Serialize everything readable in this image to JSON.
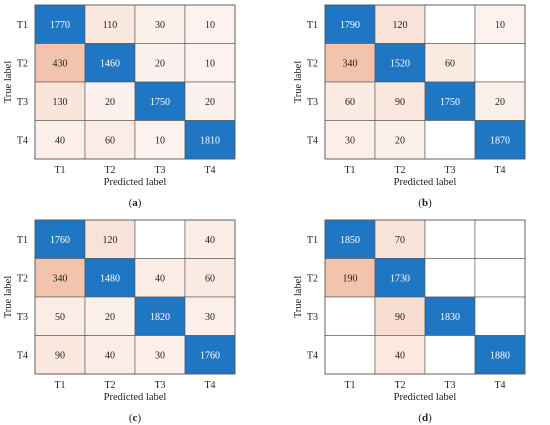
{
  "chart_data": [
    {
      "type": "heatmap",
      "panel_label": "(a)",
      "label_letter": "a",
      "xlabel": "Predicted label",
      "ylabel": "True label",
      "x_categories": [
        "T1",
        "T2",
        "T3",
        "T4"
      ],
      "y_categories": [
        "T1",
        "T2",
        "T3",
        "T4"
      ],
      "values": [
        [
          1770,
          110,
          30,
          10
        ],
        [
          430,
          1460,
          20,
          10
        ],
        [
          130,
          20,
          1750,
          20
        ],
        [
          40,
          60,
          10,
          1810
        ]
      ],
      "labels": [
        [
          "1770",
          "110",
          "30",
          "10"
        ],
        [
          "430",
          "1460",
          "20",
          "10"
        ],
        [
          "130",
          "20",
          "1750",
          "20"
        ],
        [
          "40",
          "60",
          "10",
          "1810"
        ]
      ]
    },
    {
      "type": "heatmap",
      "panel_label": "(b)",
      "label_letter": "b",
      "xlabel": "Predicted label",
      "ylabel": "True label",
      "x_categories": [
        "T1",
        "T2",
        "T3",
        "T4"
      ],
      "y_categories": [
        "T1",
        "T2",
        "T3",
        "T4"
      ],
      "values": [
        [
          1790,
          120,
          0,
          10
        ],
        [
          340,
          1520,
          60,
          0
        ],
        [
          60,
          90,
          1750,
          20
        ],
        [
          30,
          20,
          0,
          1870
        ]
      ],
      "labels": [
        [
          "1790",
          "120",
          "",
          "10"
        ],
        [
          "340",
          "1520",
          "60",
          ""
        ],
        [
          "60",
          "90",
          "1750",
          "20"
        ],
        [
          "30",
          "20",
          "",
          "1870"
        ]
      ]
    },
    {
      "type": "heatmap",
      "panel_label": "(c)",
      "label_letter": "c",
      "xlabel": "Predicted label",
      "ylabel": "True label",
      "x_categories": [
        "T1",
        "T2",
        "T3",
        "T4"
      ],
      "y_categories": [
        "T1",
        "T2",
        "T3",
        "T4"
      ],
      "values": [
        [
          1760,
          120,
          0,
          40
        ],
        [
          340,
          1480,
          40,
          60
        ],
        [
          50,
          20,
          1820,
          30
        ],
        [
          90,
          40,
          30,
          1760
        ]
      ],
      "labels": [
        [
          "1760",
          "120",
          "",
          "40"
        ],
        [
          "340",
          "1480",
          "40",
          "60"
        ],
        [
          "50",
          "20",
          "1820",
          "30"
        ],
        [
          "90",
          "40",
          "30",
          "1760"
        ]
      ]
    },
    {
      "type": "heatmap",
      "panel_label": "(d)",
      "label_letter": "d",
      "xlabel": "Predicted label",
      "ylabel": "True label",
      "x_categories": [
        "T1",
        "T2",
        "T3",
        "T4"
      ],
      "y_categories": [
        "T1",
        "T2",
        "T3",
        "T4"
      ],
      "values": [
        [
          1850,
          70,
          0,
          0
        ],
        [
          190,
          1730,
          0,
          0
        ],
        [
          0,
          90,
          1830,
          0
        ],
        [
          0,
          40,
          0,
          1880
        ]
      ],
      "labels": [
        [
          "1850",
          "70",
          "",
          ""
        ],
        [
          "190",
          "1730",
          "",
          ""
        ],
        [
          "",
          "90",
          "1830",
          ""
        ],
        [
          "",
          "40",
          "",
          "1880"
        ]
      ]
    }
  ],
  "colors": {
    "diagonal": "#1f77c4",
    "empty": "#ffffff",
    "scale_low": "#fdf3ef",
    "scale_high": "#f2c4ad",
    "grid": "#555555",
    "diagonal_text": "#ffffff"
  }
}
